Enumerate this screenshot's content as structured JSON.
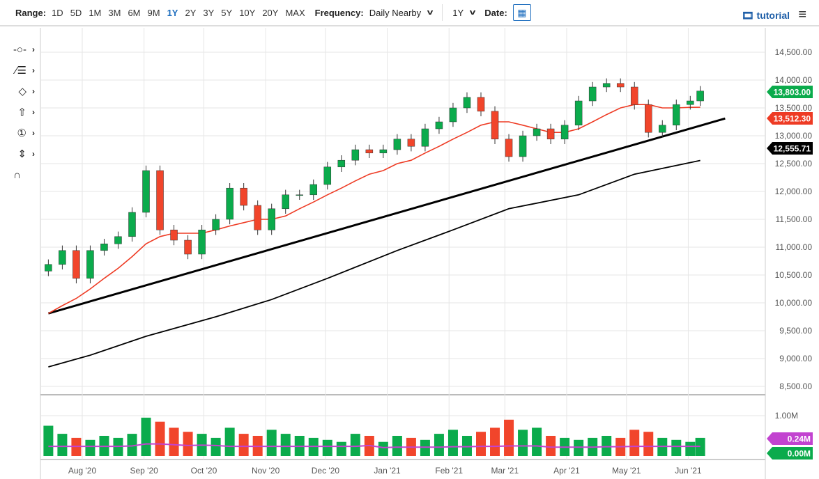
{
  "toolbar": {
    "range_label": "Range:",
    "ranges": [
      "1D",
      "5D",
      "1M",
      "3M",
      "6M",
      "9M",
      "1Y",
      "2Y",
      "3Y",
      "5Y",
      "10Y",
      "20Y",
      "MAX"
    ],
    "active_range": "1Y",
    "frequency_label": "Frequency:",
    "frequency_value": "Daily Nearby",
    "period_value": "1Y",
    "date_label": "Date:",
    "tutorial_label": "tutorial"
  },
  "tools": [
    "crosshair-icon",
    "trendline-icon",
    "shape-icon",
    "arrow-up-icon",
    "annotation-number-icon",
    "measure-icon",
    "magnet-icon"
  ],
  "chart_data": {
    "type": "candlestick",
    "x_unit": "days since Jul 15 2020 (weekly samples)",
    "ylim": [
      8500,
      14700
    ],
    "y_ticks": [
      "14,500.00",
      "14,000.00",
      "13,500.00",
      "13,000.00",
      "12,500.00",
      "12,000.00",
      "11,500.00",
      "11,000.00",
      "10,500.00",
      "10,000.00",
      "9,500.00",
      "9,000.00",
      "8,500.00"
    ],
    "y_tick_values": [
      14500,
      14000,
      13500,
      13000,
      12500,
      12000,
      11500,
      11000,
      10500,
      10000,
      9500,
      9000,
      8500
    ],
    "x_ticks": [
      {
        "label": "Aug '20",
        "day": 17
      },
      {
        "label": "Sep '20",
        "day": 48
      },
      {
        "label": "Oct '20",
        "day": 78
      },
      {
        "label": "Nov '20",
        "day": 109
      },
      {
        "label": "Dec '20",
        "day": 139
      },
      {
        "label": "Jan '21",
        "day": 170
      },
      {
        "label": "Feb '21",
        "day": 201
      },
      {
        "label": "Mar '21",
        "day": 229
      },
      {
        "label": "Apr '21",
        "day": 260
      },
      {
        "label": "May '21",
        "day": 290
      },
      {
        "label": "Jun '21",
        "day": 321
      }
    ],
    "close": [
      10690,
      10940,
      10440,
      10940,
      11060,
      11190,
      11625,
      12375,
      11310,
      11125,
      10875,
      11310,
      11500,
      12060,
      11750,
      11310,
      11690,
      11940,
      11940,
      12125,
      12440,
      12560,
      12750,
      12690,
      12750,
      12940,
      12810,
      13125,
      13250,
      13500,
      13690,
      13440,
      12940,
      12625,
      13000,
      13125,
      12940,
      13190,
      13625,
      13875,
      13940,
      13875,
      13560,
      13060,
      13190,
      13560,
      13625,
      13803
    ],
    "ma50": [
      9810,
      9950,
      10080,
      10250,
      10440,
      10620,
      10830,
      11060,
      11190,
      11250,
      11250,
      11250,
      11310,
      11380,
      11440,
      11500,
      11500,
      11560,
      11690,
      11810,
      11940,
      12060,
      12190,
      12310,
      12375,
      12500,
      12560,
      12690,
      12810,
      12940,
      13060,
      13190,
      13250,
      13250,
      13190,
      13125,
      13060,
      13060,
      13125,
      13250,
      13380,
      13500,
      13560,
      13560,
      13500,
      13500,
      13510,
      13512.3
    ],
    "ma200_points": [
      [
        0,
        8850
      ],
      [
        3,
        9060
      ],
      [
        7,
        9400
      ],
      [
        12,
        9750
      ],
      [
        16,
        10060
      ],
      [
        20,
        10440
      ],
      [
        25,
        10940
      ],
      [
        29,
        11310
      ],
      [
        33,
        11690
      ],
      [
        38,
        11940
      ],
      [
        42,
        12310
      ],
      [
        47,
        12555.71
      ]
    ],
    "trendline": [
      [
        0,
        9810
      ],
      [
        48.5,
        13310
      ]
    ],
    "price_labels": {
      "last": "13,803.00",
      "ma50": "13,512.30",
      "ma200": "12,555.71"
    },
    "volume": {
      "y_tick": "1.00M",
      "avg_label": "0.24M",
      "last_label": "0.00M",
      "ylim": [
        0,
        1.1
      ],
      "values": [
        0.75,
        0.55,
        0.45,
        0.4,
        0.5,
        0.45,
        0.55,
        0.95,
        0.85,
        0.7,
        0.6,
        0.55,
        0.45,
        0.7,
        0.55,
        0.5,
        0.65,
        0.55,
        0.5,
        0.45,
        0.4,
        0.35,
        0.55,
        0.5,
        0.35,
        0.5,
        0.45,
        0.4,
        0.55,
        0.65,
        0.5,
        0.6,
        0.7,
        0.9,
        0.65,
        0.7,
        0.5,
        0.45,
        0.4,
        0.45,
        0.5,
        0.45,
        0.65,
        0.6,
        0.45,
        0.4,
        0.35,
        0.45
      ],
      "avg": [
        0.24,
        0.24,
        0.24,
        0.24,
        0.24,
        0.24,
        0.25,
        0.3,
        0.3,
        0.28,
        0.26,
        0.27,
        0.26,
        0.24,
        0.24,
        0.24,
        0.24,
        0.24,
        0.24,
        0.24,
        0.24,
        0.24,
        0.24,
        0.26,
        0.21,
        0.22,
        0.22,
        0.22,
        0.22,
        0.23,
        0.23,
        0.24,
        0.24,
        0.25,
        0.25,
        0.25,
        0.22,
        0.22,
        0.22,
        0.22,
        0.23,
        0.23,
        0.24,
        0.24,
        0.24,
        0.24,
        0.24,
        0.24
      ]
    },
    "colors": {
      "up": "#0bab4c",
      "down": "#f1452b",
      "ma50": "#ee3b24",
      "ma200": "#000000",
      "avg": "#c243d0"
    }
  }
}
